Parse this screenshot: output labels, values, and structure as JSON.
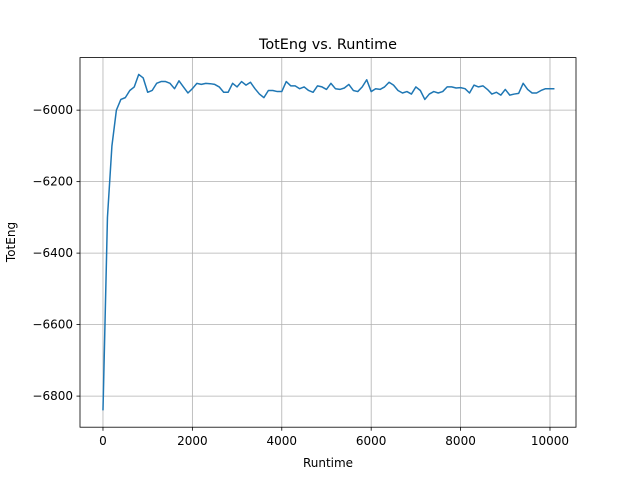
{
  "chart_data": {
    "type": "line",
    "title": "TotEng vs. Runtime",
    "xlabel": "Runtime",
    "ylabel": "TotEng",
    "x": [
      0,
      100,
      200,
      300,
      400,
      500,
      600,
      700,
      800,
      900,
      1000,
      1100,
      1200,
      1300,
      1400,
      1500,
      1600,
      1700,
      1800,
      1900,
      2000,
      2100,
      2200,
      2300,
      2400,
      2500,
      2600,
      2700,
      2800,
      2900,
      3000,
      3100,
      3200,
      3300,
      3400,
      3500,
      3600,
      3700,
      3800,
      3900,
      4000,
      4100,
      4200,
      4300,
      4400,
      4500,
      4600,
      4700,
      4800,
      4900,
      5000,
      5100,
      5200,
      5300,
      5400,
      5500,
      5600,
      5700,
      5800,
      5900,
      6000,
      6100,
      6200,
      6300,
      6400,
      6500,
      6600,
      6700,
      6800,
      6900,
      7000,
      7100,
      7200,
      7300,
      7400,
      7500,
      7600,
      7700,
      7800,
      7900,
      8000,
      8100,
      8200,
      8300,
      8400,
      8500,
      8600,
      8700,
      8800,
      8900,
      9000,
      9100,
      9200,
      9300,
      9400,
      9500,
      9600,
      9700,
      9800,
      9900,
      10000,
      10100
    ],
    "series": [
      {
        "name": "TotEng",
        "color": "#1f77b4",
        "values": [
          -6840,
          -6300,
          -6100,
          -6000,
          -5970,
          -5965,
          -5945,
          -5935,
          -5900,
          -5910,
          -5950,
          -5945,
          -5925,
          -5920,
          -5920,
          -5925,
          -5940,
          -5918,
          -5935,
          -5952,
          -5940,
          -5925,
          -5928,
          -5925,
          -5926,
          -5928,
          -5935,
          -5950,
          -5950,
          -5925,
          -5935,
          -5920,
          -5930,
          -5922,
          -5940,
          -5955,
          -5965,
          -5945,
          -5945,
          -5948,
          -5948,
          -5920,
          -5932,
          -5932,
          -5940,
          -5935,
          -5945,
          -5950,
          -5932,
          -5935,
          -5942,
          -5925,
          -5940,
          -5942,
          -5938,
          -5928,
          -5945,
          -5948,
          -5935,
          -5915,
          -5948,
          -5940,
          -5942,
          -5935,
          -5922,
          -5930,
          -5945,
          -5952,
          -5948,
          -5955,
          -5935,
          -5945,
          -5970,
          -5955,
          -5948,
          -5952,
          -5948,
          -5935,
          -5935,
          -5938,
          -5937,
          -5940,
          -5952,
          -5930,
          -5935,
          -5932,
          -5942,
          -5955,
          -5950,
          -5958,
          -5942,
          -5958,
          -5955,
          -5953,
          -5925,
          -5942,
          -5952,
          -5952,
          -5945,
          -5940,
          -5940,
          -5940
        ]
      }
    ],
    "xlim": [
      -514,
      10582
    ],
    "ylim": [
      -6887,
      -5853
    ],
    "xticks": [
      0,
      2000,
      4000,
      6000,
      8000,
      10000
    ],
    "yticks": [
      {
        "value": -6800,
        "label": "−6800"
      },
      {
        "value": -6600,
        "label": "−6600"
      },
      {
        "value": -6400,
        "label": "−6400"
      },
      {
        "value": -6200,
        "label": "−6200"
      },
      {
        "value": -6000,
        "label": "−6000"
      }
    ],
    "grid": true
  }
}
